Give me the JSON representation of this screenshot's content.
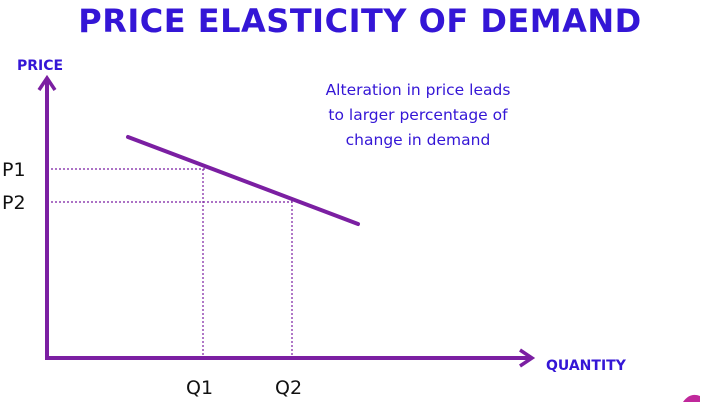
{
  "title": "PRICE ELASTICITY OF DEMAND",
  "annotation": [
    "Alteration in price leads",
    "to larger percentage of",
    "change in demand"
  ],
  "axes": {
    "y_label": "PRICE",
    "x_label": "QUANTITY"
  },
  "price_ticks": [
    "P1",
    "P2"
  ],
  "quantity_ticks": [
    "Q1",
    "Q2"
  ],
  "colors": {
    "title": "#3416d6",
    "axis": "#7b1fa2",
    "demand_line": "#7b1fa2",
    "guides": "#7b1fa2",
    "tick_text": "#111111"
  }
}
